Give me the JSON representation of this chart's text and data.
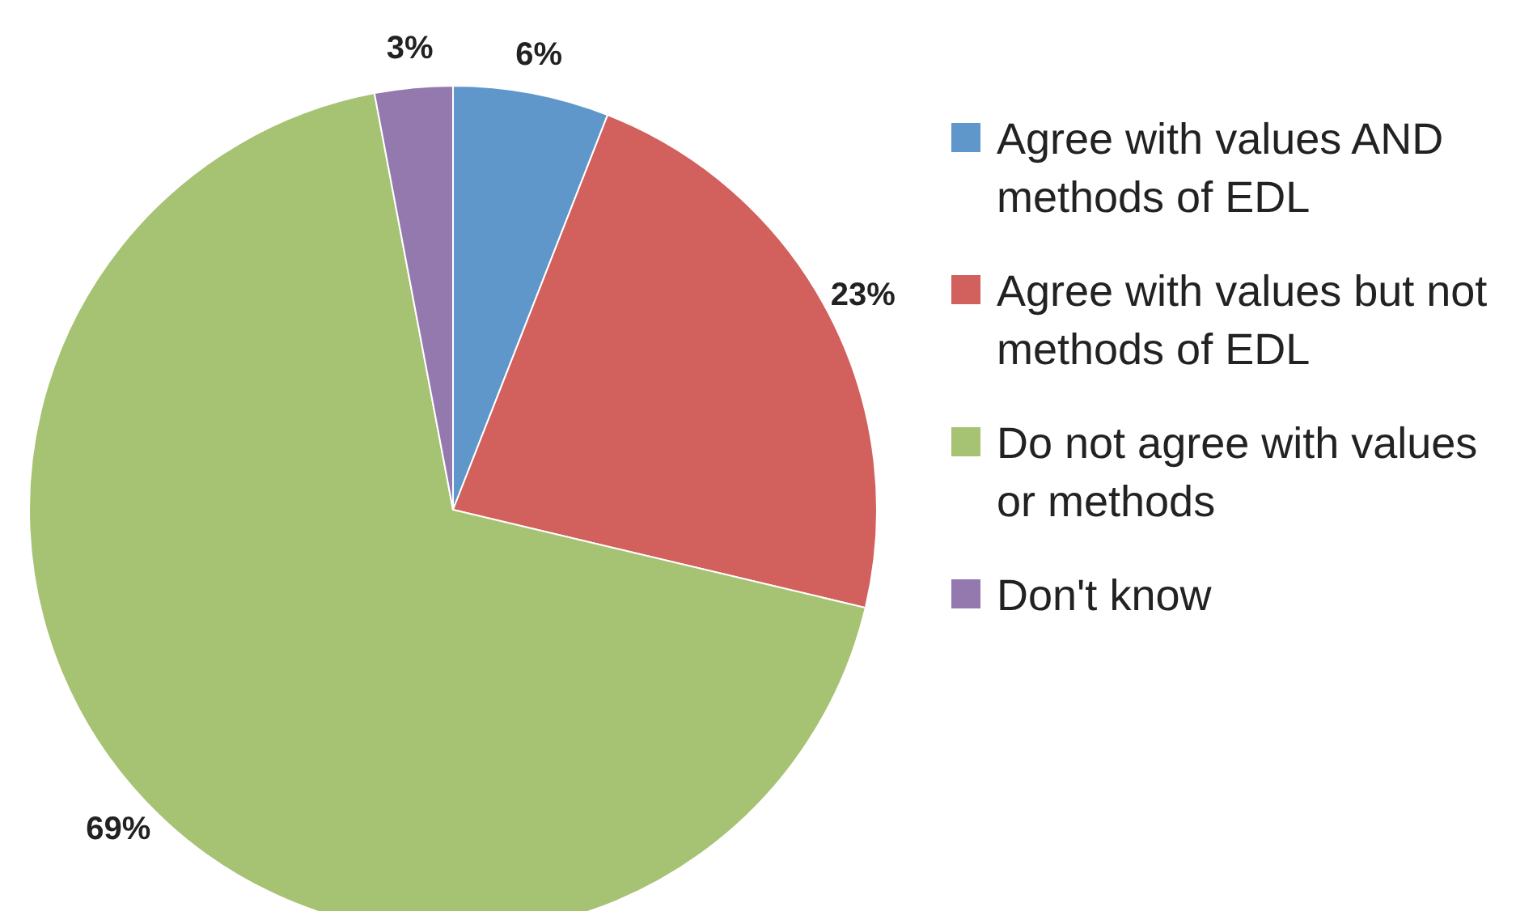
{
  "chart_data": {
    "type": "pie",
    "categories": [
      "Agree with values AND methods of EDL",
      "Agree with values but not methods of EDL",
      "Do not agree with values or methods",
      "Don't know"
    ],
    "values": [
      6,
      23,
      69,
      3
    ],
    "colors": [
      "#5f97cb",
      "#d2605c",
      "#a6c273",
      "#9479ae"
    ],
    "value_labels": [
      "6%",
      "23%",
      "69%",
      "3%"
    ],
    "legend": "right"
  }
}
